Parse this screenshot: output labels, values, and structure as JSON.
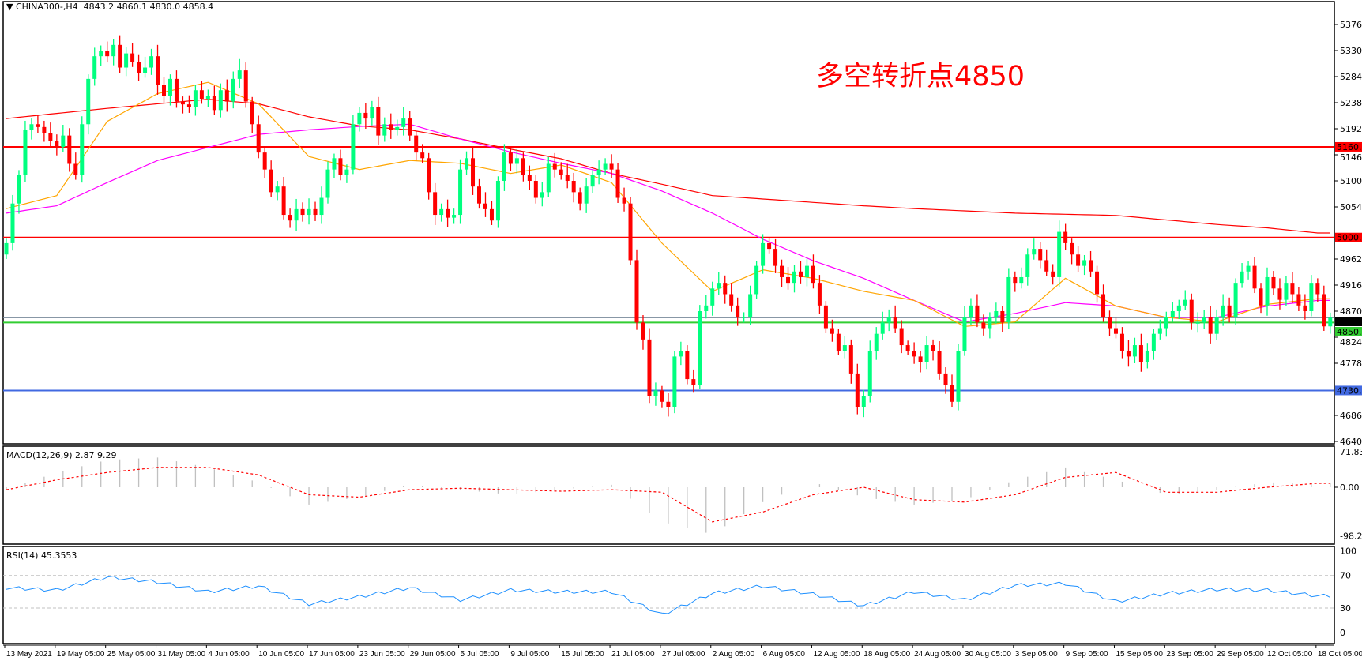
{
  "header": {
    "symbol_label": "CHINA300-,H4",
    "ohlc": "4843.2 4860.1 4830.0 4858.4"
  },
  "annotation": "多空转折点4850",
  "colors": {
    "bull": "#00ff7f",
    "bear": "#ff0000",
    "ma_fast": "#ffa500",
    "ma_mid": "#ff00ff",
    "ma_slow": "#ff0000",
    "macd_hist": "#c0c0c0",
    "macd_signal": "#ff0000",
    "rsi": "#1e90ff",
    "level_green": "#32cd32",
    "level_blue": "#4169e1",
    "level_red": "#ff0000"
  },
  "chart_data": {
    "type": "candlestick",
    "price_axis": {
      "ylim": [
        4640,
        5376
      ],
      "ticks": [
        "5376.0",
        "5330.0",
        "5284.0",
        "5238.0",
        "5192.0",
        "5146.0",
        "5100.0",
        "5054.0",
        "4962.0",
        "4916.0",
        "4870.0",
        "4824.0",
        "4778.0",
        "4686.0",
        "4640.0"
      ]
    },
    "x_tick_labels": [
      "13 May 2021",
      "19 May 05:00",
      "25 May 05:00",
      "31 May 05:00",
      "4 Jun 05:00",
      "10 Jun 05:00",
      "17 Jun 05:00",
      "23 Jun 05:00",
      "29 Jun 05:00",
      "5 Jul 05:00",
      "9 Jul 05:00",
      "15 Jul 05:00",
      "21 Jul 05:00",
      "27 Jul 05:00",
      "2 Aug 05:00",
      "6 Aug 05:00",
      "12 Aug 05:00",
      "18 Aug 05:00",
      "24 Aug 05:00",
      "30 Aug 05:00",
      "3 Sep 05:00",
      "9 Sep 05:00",
      "15 Sep 05:00",
      "23 Sep 05:00",
      "29 Sep 05:00",
      "12 Oct 05:00",
      "18 Oct 05:00"
    ],
    "bars_per_tick": 8,
    "closes": [
      4990,
      5060,
      5110,
      5190,
      5200,
      5195,
      5185,
      5170,
      5160,
      5180,
      5130,
      5110,
      5200,
      5280,
      5320,
      5330,
      5320,
      5340,
      5300,
      5325,
      5310,
      5290,
      5300,
      5320,
      5270,
      5250,
      5280,
      5240,
      5235,
      5230,
      5260,
      5245,
      5250,
      5225,
      5260,
      5240,
      5280,
      5295,
      5240,
      5200,
      5150,
      5120,
      5080,
      5090,
      5040,
      5030,
      5050,
      5040,
      5050,
      5040,
      5070,
      5120,
      5140,
      5110,
      5120,
      5200,
      5220,
      5210,
      5230,
      5180,
      5200,
      5190,
      5195,
      5210,
      5180,
      5150,
      5140,
      5080,
      5040,
      5050,
      5035,
      5040,
      5120,
      5140,
      5090,
      5060,
      5050,
      5030,
      5100,
      5150,
      5130,
      5140,
      5110,
      5100,
      5070,
      5080,
      5130,
      5120,
      5110,
      5100,
      5080,
      5060,
      5090,
      5110,
      5120,
      5130,
      5120,
      5070,
      5060,
      4960,
      4850,
      4820,
      4720,
      4730,
      4710,
      4700,
      4790,
      4800,
      4750,
      4740,
      4870,
      4880,
      4910,
      4920,
      4900,
      4880,
      4860,
      4860,
      4900,
      4950,
      4990,
      4980,
      4950,
      4930,
      4920,
      4940,
      4930,
      4950,
      4920,
      4880,
      4840,
      4830,
      4800,
      4810,
      4760,
      4700,
      4720,
      4800,
      4830,
      4850,
      4860,
      4840,
      4810,
      4800,
      4790,
      4780,
      4810,
      4800,
      4760,
      4740,
      4710,
      4800,
      4860,
      4880,
      4850,
      4840,
      4860,
      4870,
      4850,
      4930,
      4920,
      4930,
      4970,
      4980,
      4960,
      4940,
      4930,
      5010,
      4990,
      4970,
      4950,
      4960,
      4940,
      4900,
      4860,
      4840,
      4830,
      4800,
      4790,
      4810,
      4780,
      4800,
      4830,
      4840,
      4860,
      4870,
      4880,
      4890,
      4850,
      4850,
      4860,
      4830,
      4860,
      4880,
      4860,
      4920,
      4940,
      4950,
      4910,
      4880,
      4930,
      4910,
      4890,
      4920,
      4900,
      4880,
      4870,
      4920,
      4900,
      4843.2,
      4858.4
    ],
    "ma_fast_at_ticks": [
      5051,
      5074,
      5205,
      5254,
      5274,
      5236,
      5143,
      5120,
      5136,
      5131,
      5113,
      5128,
      5097,
      4990,
      4905,
      4943,
      4928,
      4905,
      4889,
      4843,
      4851,
      4928,
      4879,
      4859,
      4851,
      4882,
      4892
    ],
    "ma_mid_at_ticks": [
      5043,
      5056,
      5097,
      5136,
      5159,
      5182,
      5190,
      5196,
      5200,
      5174,
      5151,
      5131,
      5113,
      5082,
      5043,
      4997,
      4959,
      4928,
      4889,
      4851,
      4866,
      4885,
      4879,
      4859,
      4859,
      4879,
      4889
    ],
    "ma_slow_at_ticks": [
      5210,
      5219,
      5228,
      5236,
      5244,
      5236,
      5213,
      5197,
      5190,
      5174,
      5156,
      5139,
      5113,
      5094,
      5074,
      5068,
      5062,
      5056,
      5051,
      5047,
      5043,
      5041,
      5039,
      5031,
      5023,
      5017,
      5008
    ],
    "levels": [
      {
        "value": 5160,
        "label": "5160.0",
        "color": "red"
      },
      {
        "value": 5000,
        "label": "5000.0",
        "color": "red"
      },
      {
        "value": 4850,
        "label": "4850.0",
        "color": "green"
      },
      {
        "value": 4730,
        "label": "4730.0",
        "color": "blue"
      },
      {
        "value": 4858.4,
        "label": "4858.4",
        "color": "gray"
      }
    ],
    "macd": {
      "title": "MACD(12,26,9) 2.87 9.29",
      "ylim": [
        -98.25,
        71.83
      ],
      "ticks": [
        "71.83",
        "0.00",
        "-98.25"
      ],
      "hist_at_ticks": [
        -5,
        30,
        55,
        60,
        40,
        10,
        -35,
        -20,
        5,
        -5,
        -15,
        -5,
        5,
        -70,
        -95,
        -30,
        10,
        -20,
        -35,
        -25,
        15,
        40,
        15,
        -15,
        -5,
        10,
        8
      ],
      "signal_at_ticks": [
        -5,
        15,
        30,
        40,
        40,
        25,
        -15,
        -20,
        -5,
        -2,
        -5,
        -8,
        -5,
        -10,
        -70,
        -50,
        -15,
        0,
        -25,
        -30,
        -15,
        20,
        30,
        -10,
        -10,
        0,
        8
      ]
    },
    "rsi": {
      "title": "RSI(14) 45.3553",
      "ylim": [
        0,
        100
      ],
      "levels": [
        70,
        30
      ],
      "ticks": [
        "100",
        "70",
        "30",
        "0"
      ],
      "values_at_ticks": [
        55,
        52,
        68,
        62,
        50,
        57,
        35,
        44,
        55,
        40,
        52,
        50,
        50,
        22,
        48,
        57,
        47,
        33,
        50,
        40,
        58,
        60,
        38,
        48,
        53,
        52,
        45
      ]
    }
  }
}
